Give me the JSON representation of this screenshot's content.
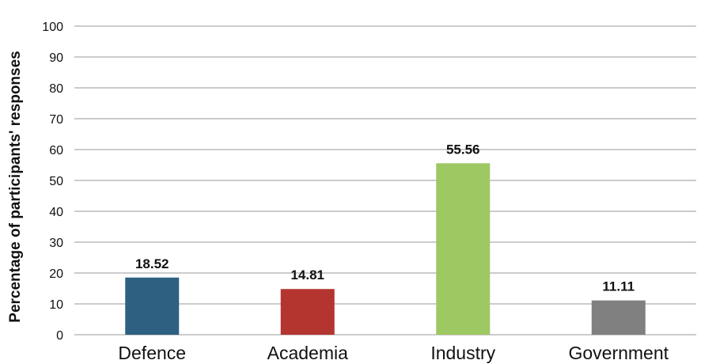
{
  "chart_data": {
    "type": "bar",
    "categories": [
      "Defence",
      "Academia",
      "Industry",
      "Government"
    ],
    "values": [
      18.52,
      14.81,
      55.56,
      11.11
    ],
    "data_labels": [
      "18.52",
      "14.81",
      "55.56",
      "11.11"
    ],
    "colors": [
      "#2e6082",
      "#b43430",
      "#9ec862",
      "#808080"
    ],
    "title": "",
    "xlabel": "",
    "ylabel": "Percentage of participants' responses",
    "ylim": [
      0,
      100
    ],
    "yticks": [
      "0",
      "10",
      "20",
      "30",
      "40",
      "50",
      "60",
      "70",
      "80",
      "90",
      "100"
    ],
    "grid": true,
    "legend": "none"
  }
}
